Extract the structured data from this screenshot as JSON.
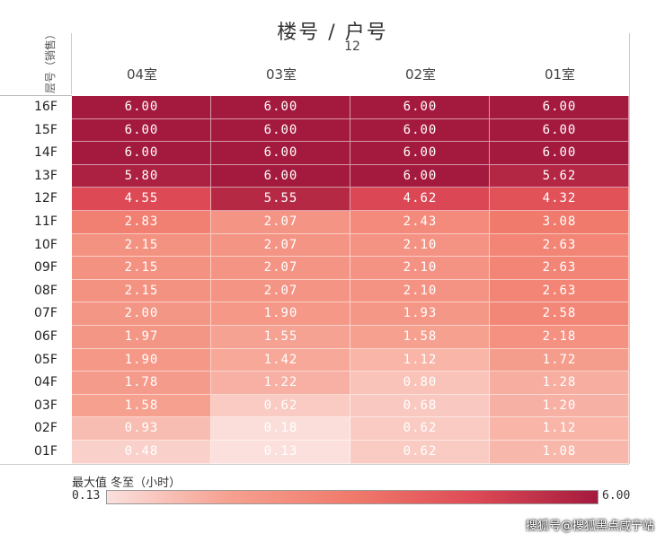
{
  "header": {
    "title": "楼号 / 户号",
    "subtitle": "12",
    "y_axis_label": "层号（销售）"
  },
  "legend": {
    "title": "最大值 冬至（小时）",
    "min_label": "0.13",
    "max_label": "6.00",
    "color_low": "#f8d7d5",
    "color_high": "#a41a3e"
  },
  "watermark": "搜狐号@搜狐黑点咸宁站",
  "chart_data": {
    "type": "heatmap",
    "title": "楼号 / 户号",
    "subtitle": "12",
    "x_categories": [
      "04室",
      "03室",
      "02室",
      "01室"
    ],
    "y_categories": [
      "16F",
      "15F",
      "14F",
      "13F",
      "12F",
      "11F",
      "10F",
      "09F",
      "08F",
      "07F",
      "06F",
      "05F",
      "04F",
      "03F",
      "02F",
      "01F"
    ],
    "value_labels": [
      [
        "6.00",
        "6.00",
        "6.00",
        "6.00"
      ],
      [
        "6.00",
        "6.00",
        "6.00",
        "6.00"
      ],
      [
        "6.00",
        "6.00",
        "6.00",
        "6.00"
      ],
      [
        "5.80",
        "6.00",
        "6.00",
        "5.62"
      ],
      [
        "4.55",
        "5.55",
        "4.62",
        "4.32"
      ],
      [
        "2.83",
        "2.07",
        "2.43",
        "3.08"
      ],
      [
        "2.15",
        "2.07",
        "2.10",
        "2.63"
      ],
      [
        "2.15",
        "2.07",
        "2.10",
        "2.63"
      ],
      [
        "2.15",
        "2.07",
        "2.10",
        "2.63"
      ],
      [
        "2.00",
        "1.90",
        "1.93",
        "2.58"
      ],
      [
        "1.97",
        "1.55",
        "1.58",
        "2.18"
      ],
      [
        "1.90",
        "1.42",
        "1.12",
        "1.72"
      ],
      [
        "1.78",
        "1.22",
        "0.80",
        "1.28"
      ],
      [
        "1.58",
        "0.62",
        "0.68",
        "1.20"
      ],
      [
        "0.93",
        "0.18",
        "0.62",
        "1.12"
      ],
      [
        "0.48",
        "0.13",
        "0.62",
        "1.08"
      ]
    ],
    "color_range": [
      0.13,
      6.0
    ],
    "legend_title": "最大值 冬至（小时）"
  }
}
